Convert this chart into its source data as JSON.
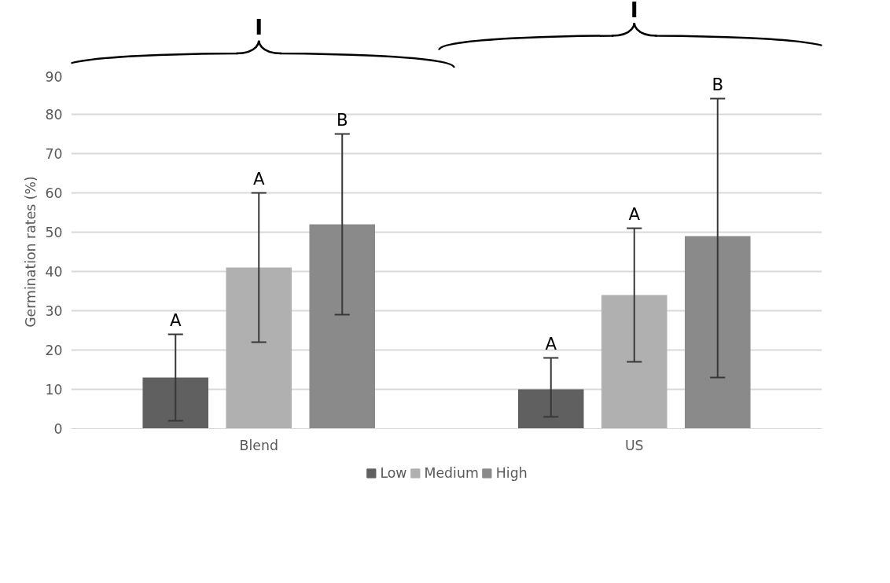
{
  "chart_data": {
    "type": "bar",
    "ylabel": "Germination rates (%)",
    "categories": [
      "Blend",
      "US"
    ],
    "series": [
      {
        "name": "Low",
        "color": "#606060",
        "values": [
          13,
          10
        ],
        "errors": [
          [
            2,
            24
          ],
          [
            3,
            18
          ]
        ]
      },
      {
        "name": "Medium",
        "color": "#b0b0b0",
        "values": [
          41,
          34
        ],
        "errors": [
          [
            22,
            60
          ],
          [
            17,
            51
          ]
        ]
      },
      {
        "name": "High",
        "color": "#8a8a8a",
        "values": [
          52,
          49
        ],
        "errors": [
          [
            29,
            75
          ],
          [
            13,
            84
          ]
        ]
      }
    ],
    "annotations": [
      "A",
      "A",
      "B",
      "A",
      "A",
      "B",
      "I",
      "I"
    ],
    "ylim": [
      0,
      90
    ],
    "yticks": [
      0,
      10,
      20,
      30,
      40,
      50,
      60,
      70,
      80,
      90
    ],
    "grid": "y",
    "legend": "bottom"
  }
}
